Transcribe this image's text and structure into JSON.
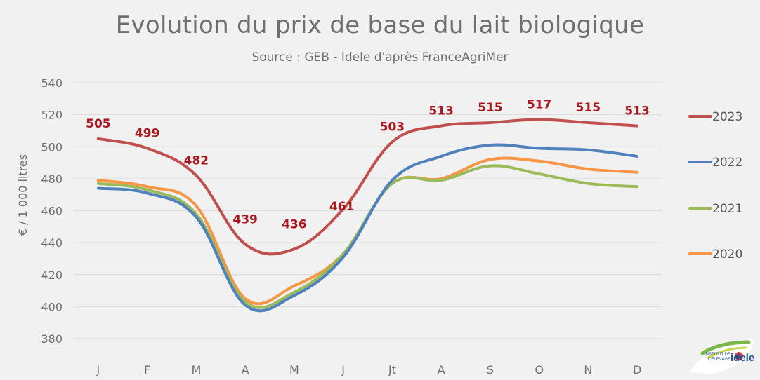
{
  "chart_data": {
    "type": "line",
    "title": "Evolution du prix de base du lait biologique",
    "subtitle": "Source : GEB - Idele d'après FranceAgriMer",
    "ylabel": "€ / 1 000 litres",
    "xlabel": "",
    "categories": [
      "J",
      "F",
      "M",
      "A",
      "M",
      "J",
      "Jt",
      "A",
      "S",
      "O",
      "N",
      "D"
    ],
    "ylim": [
      380,
      540
    ],
    "yticks": [
      380,
      400,
      420,
      440,
      460,
      480,
      500,
      520,
      540
    ],
    "grid": "horizontal",
    "legend_position": "right",
    "series": [
      {
        "name": "2023",
        "color": "#c0504d",
        "values": [
          505,
          499,
          482,
          439,
          436,
          461,
          503,
          513,
          515,
          517,
          515,
          513
        ],
        "data_labels": [
          "505",
          "499",
          "482",
          "439",
          "436",
          "461",
          "503",
          "513",
          "515",
          "517",
          "515",
          "513"
        ]
      },
      {
        "name": "2022",
        "color": "#4f81bd",
        "values": [
          474,
          471,
          456,
          401,
          407,
          431,
          479,
          494,
          501,
          499,
          498,
          494
        ]
      },
      {
        "name": "2021",
        "color": "#9bbb59",
        "values": [
          477,
          473,
          458,
          403,
          409,
          433,
          477,
          479,
          488,
          483,
          477,
          475
        ]
      },
      {
        "name": "2020",
        "color": "#f79646",
        "values": [
          479,
          475,
          463,
          405,
          413,
          433,
          477,
          480,
          492,
          491,
          486,
          484
        ]
      }
    ]
  },
  "logo": {
    "text": "idele",
    "small_text": "INSTITUT DE L'ÉLEVAGE"
  }
}
